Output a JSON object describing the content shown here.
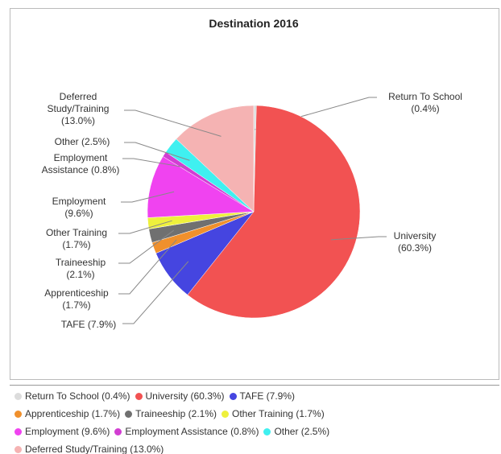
{
  "chart_data": {
    "type": "pie",
    "title": "Destination 2016",
    "categories": [
      "Return To School (0.4%)",
      "University (60.3%)",
      "TAFE (7.9%)",
      "Apprenticeship (1.7%)",
      "Traineeship (2.1%)",
      "Other Training (1.7%)",
      "Employment (9.6%)",
      "Employment Assistance (0.8%)",
      "Other (2.5%)",
      "Deferred Study/Training (13.0%)"
    ],
    "values": [
      0.4,
      60.3,
      7.9,
      1.7,
      2.1,
      1.7,
      9.6,
      0.8,
      2.5,
      13.0
    ],
    "colors": [
      "#dcdcdc",
      "#f25252",
      "#4545e0",
      "#f0902c",
      "#707070",
      "#eef03c",
      "#f043f0",
      "#d23ed2",
      "#3ff0f0",
      "#f5b3b3"
    ]
  }
}
